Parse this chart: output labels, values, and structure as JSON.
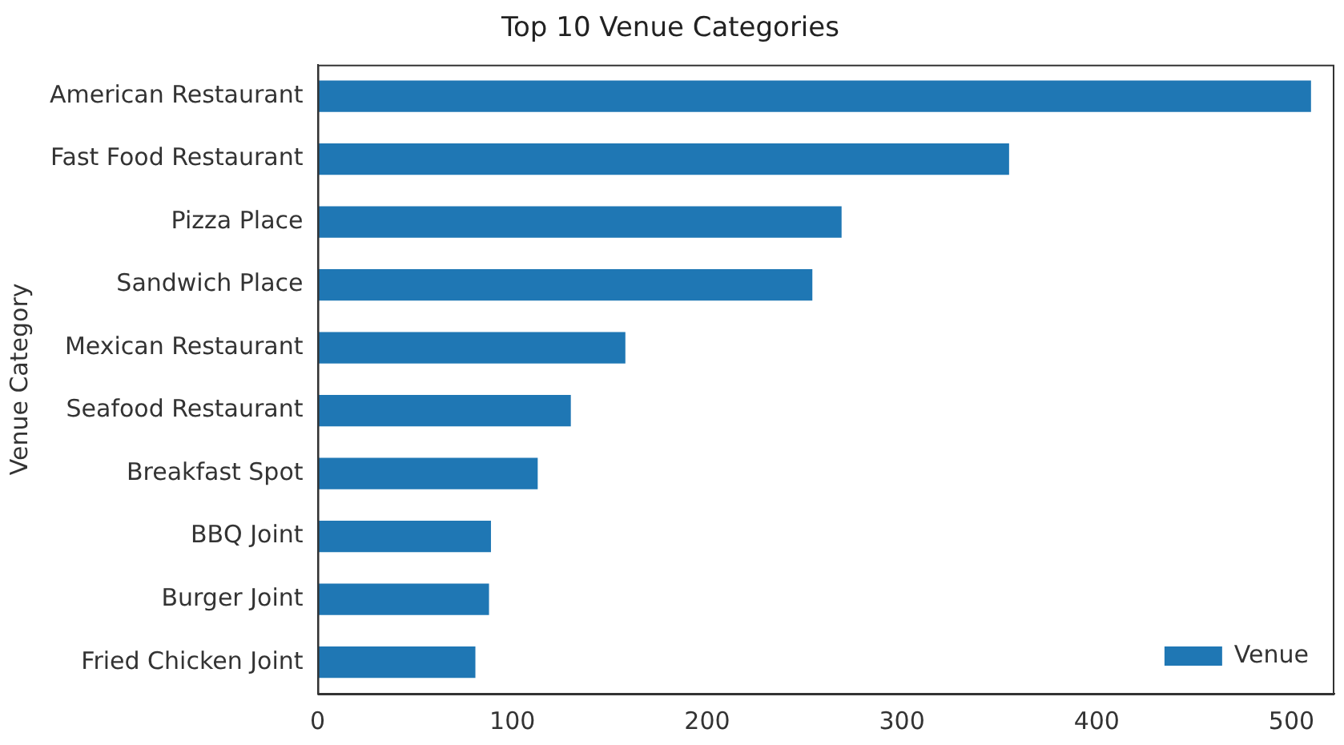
{
  "chart_data": {
    "type": "bar",
    "orientation": "horizontal",
    "title": "Top 10 Venue Categories",
    "ylabel": "Venue Category",
    "categories": [
      "American Restaurant",
      "Fast Food Restaurant",
      "Pizza Place",
      "Sandwich Place",
      "Mexican Restaurant",
      "Seafood Restaurant",
      "Breakfast Spot",
      "BBQ Joint",
      "Burger Joint",
      "Fried Chicken Joint"
    ],
    "series": [
      {
        "name": "Venue",
        "color": "#1f77b4",
        "values": [
          510,
          355,
          269,
          254,
          158,
          130,
          113,
          89,
          88,
          81
        ]
      }
    ],
    "xlim": [
      0,
      522
    ],
    "xticks": [
      0,
      100,
      200,
      300,
      400,
      500
    ],
    "grid": false,
    "legend": "bottom right"
  }
}
